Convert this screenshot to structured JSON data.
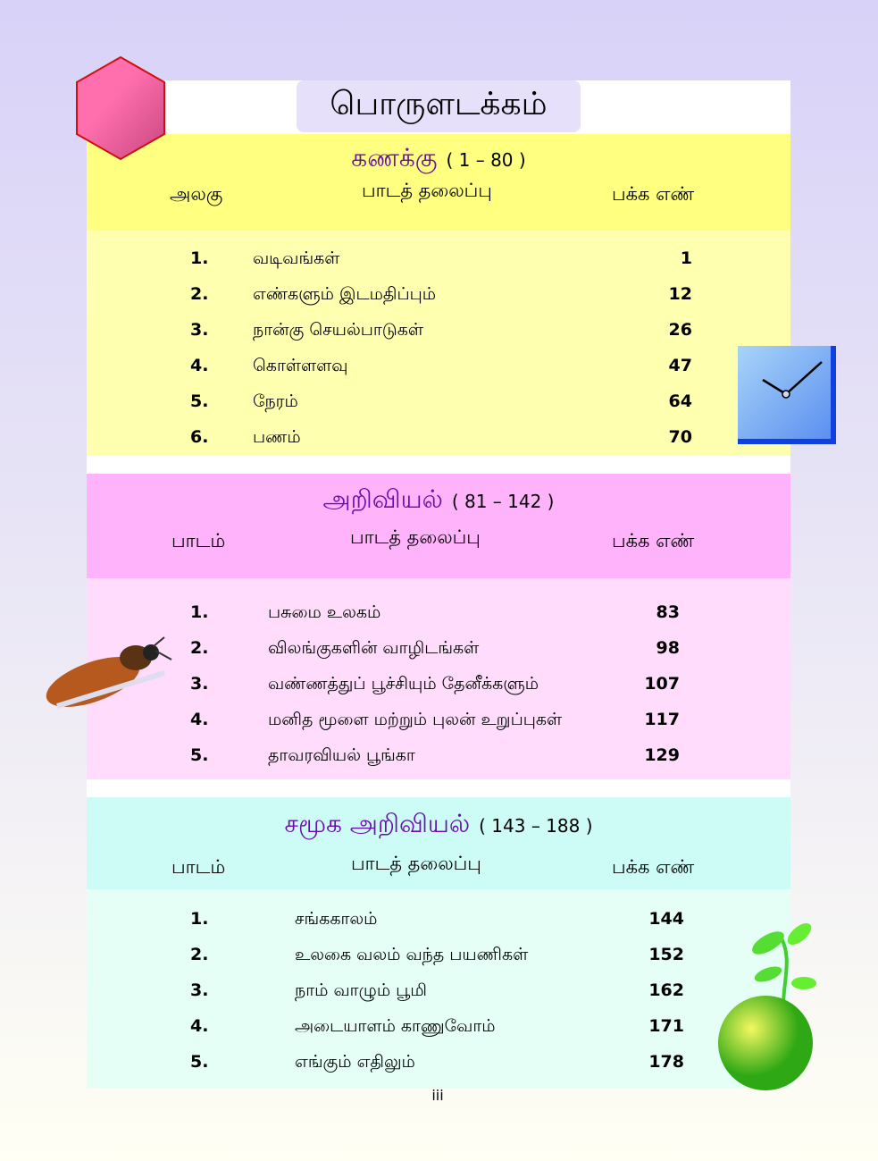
{
  "title": "பொருளடக்கம்",
  "sections": [
    {
      "name": "கணக்கு",
      "range": "( 1 – 80 )",
      "col1": "அலகு",
      "col2": "பாடத் தலைப்பு",
      "col3": "பக்க எண்",
      "rows": [
        {
          "n": "1.",
          "t": "வடிவங்கள்",
          "p": "1"
        },
        {
          "n": "2.",
          "t": "எண்களும் இடமதிப்பும்",
          "p": "12"
        },
        {
          "n": "3.",
          "t": "நான்கு செயல்பாடுகள்",
          "p": "26"
        },
        {
          "n": "4.",
          "t": "கொள்ளளவு",
          "p": "47"
        },
        {
          "n": "5.",
          "t": "நேரம்",
          "p": "64"
        },
        {
          "n": "6.",
          "t": "பணம்",
          "p": "70"
        }
      ]
    },
    {
      "name": "அறிவியல்",
      "range": "( 81 – 142 )",
      "col1": "பாடம்",
      "col2": "பாடத் தலைப்பு",
      "col3": "பக்க எண்",
      "rows": [
        {
          "n": "1.",
          "t": "பசுமை உலகம்",
          "p": "83"
        },
        {
          "n": "2.",
          "t": "விலங்குகளின் வாழிடங்கள்",
          "p": "98"
        },
        {
          "n": "3.",
          "t": "வண்ணத்துப் பூச்சியும் தேனீக்களும்",
          "p": "107"
        },
        {
          "n": "4.",
          "t": "மனித மூளை மற்றும் புலன் உறுப்புகள்",
          "p": "117"
        },
        {
          "n": "5.",
          "t": "தாவரவியல் பூங்கா",
          "p": "129"
        }
      ]
    },
    {
      "name": "சமூக அறிவியல்",
      "range": "( 143 – 188 )",
      "col1": "பாடம்",
      "col2": "பாடத் தலைப்பு",
      "col3": "பக்க எண்",
      "rows": [
        {
          "n": "1.",
          "t": "சங்ககாலம்",
          "p": "144"
        },
        {
          "n": "2.",
          "t": "உலகை வலம் வந்த பயணிகள்",
          "p": "152"
        },
        {
          "n": "3.",
          "t": "நாம் வாழும் பூமி",
          "p": "162"
        },
        {
          "n": "4.",
          "t": "அடையாளம் காணுவோம்",
          "p": "171"
        },
        {
          "n": "5.",
          "t": "எங்கும் எதிலும்",
          "p": "178"
        }
      ]
    }
  ],
  "page_number": "iii",
  "colors": {
    "heading": "#6a0dad",
    "math_header": "#ffff80",
    "math_body": "#ffffb0",
    "science_header": "#ffb3fb",
    "science_body": "#ffdcfc",
    "social_header": "#ccfcf5",
    "social_body": "#e6fff6"
  },
  "decorations": [
    "hexagon-icon",
    "clock-icon",
    "bee-image",
    "globe-plant-image"
  ]
}
